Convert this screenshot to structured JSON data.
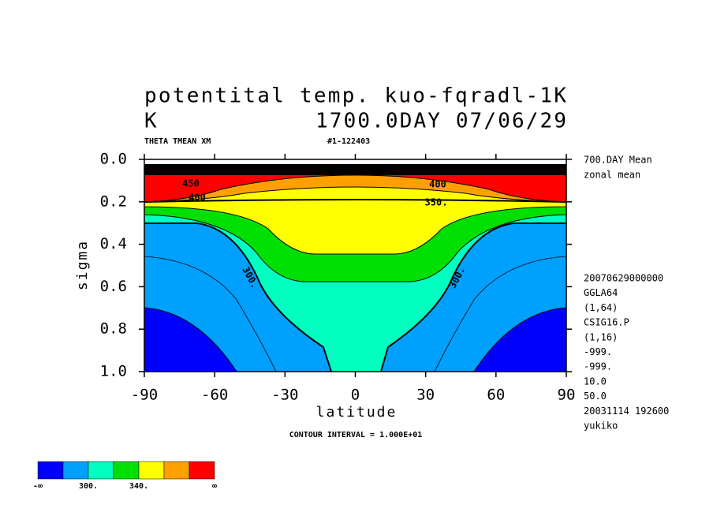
{
  "chart_data": {
    "type": "contour",
    "title": "potentital temp. kuo-fqradl-1K",
    "units": "K",
    "subtitle": "1700.0DAY 07/06/29",
    "header_left": "THETA TMEAN XM",
    "header_right": "#1-122403",
    "xlabel": "latitude",
    "ylabel": "sigma",
    "xlim": [
      -90,
      90
    ],
    "xticks": [
      -90,
      -60,
      -30,
      0,
      30,
      60,
      90
    ],
    "ylim": [
      1,
      0
    ],
    "yticks": [
      {
        "value": 0,
        "label": "0.0"
      },
      0.2,
      0.4,
      0.6,
      0.8,
      {
        "value": 1,
        "label": "1.0"
      }
    ],
    "contour_labels": [
      "300.",
      "300.",
      "350.",
      "400",
      "400",
      "450"
    ],
    "info_top": [
      "700.DAY Mean",
      "zonal mean"
    ],
    "info_bottom": [
      "20070629000000",
      "GGLA64",
      "(1,64)",
      "CSIG16.P",
      "(1,16)",
      "-999.",
      "-999.",
      "10.0",
      "50.0",
      "20031114 192600",
      "yukiko"
    ],
    "footer": "CONTOUR INTERVAL = 1.000E+01",
    "colorbar": {
      "colors": [
        "#0000ff",
        "#00a0ff",
        "#00ffc0",
        "#00e000",
        "#ffff00",
        "#ffa000",
        "#ff0000"
      ],
      "labels": [
        "-∞",
        "300.",
        "340.",
        "∞"
      ]
    }
  }
}
